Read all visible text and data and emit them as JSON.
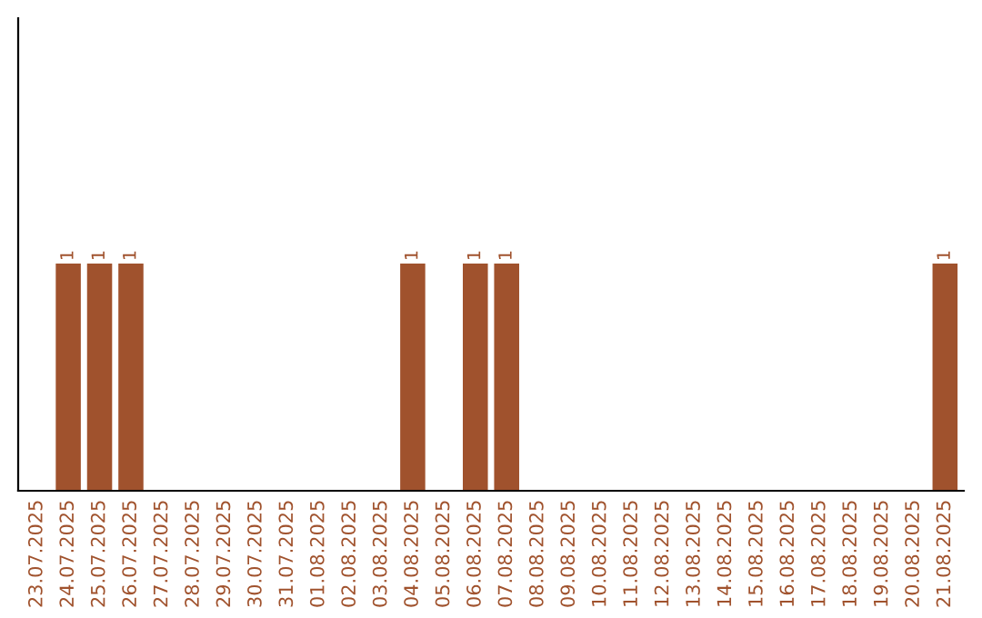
{
  "chart_data": {
    "type": "bar",
    "categories": [
      "23.07.2025",
      "24.07.2025",
      "25.07.2025",
      "26.07.2025",
      "27.07.2025",
      "28.07.2025",
      "29.07.2025",
      "30.07.2025",
      "31.07.2025",
      "01.08.2025",
      "02.08.2025",
      "03.08.2025",
      "04.08.2025",
      "05.08.2025",
      "06.08.2025",
      "07.08.2025",
      "08.08.2025",
      "09.08.2025",
      "10.08.2025",
      "11.08.2025",
      "12.08.2025",
      "13.08.2025",
      "14.08.2025",
      "15.08.2025",
      "16.08.2025",
      "17.08.2025",
      "18.08.2025",
      "19.08.2025",
      "20.08.2025",
      "21.08.2025"
    ],
    "values": [
      0,
      1,
      1,
      1,
      0,
      0,
      0,
      0,
      0,
      0,
      0,
      0,
      1,
      0,
      1,
      1,
      0,
      0,
      0,
      0,
      0,
      0,
      0,
      0,
      0,
      0,
      0,
      0,
      0,
      1
    ],
    "value_labels": [
      null,
      "1",
      "1",
      "1",
      null,
      null,
      null,
      null,
      null,
      null,
      null,
      null,
      "1",
      null,
      "1",
      "1",
      null,
      null,
      null,
      null,
      null,
      null,
      null,
      null,
      null,
      null,
      null,
      null,
      null,
      "1"
    ],
    "color": "#a0522d",
    "ylim": [
      0,
      2.08
    ],
    "tick_labels": "x",
    "grid": false,
    "legend": false
  }
}
